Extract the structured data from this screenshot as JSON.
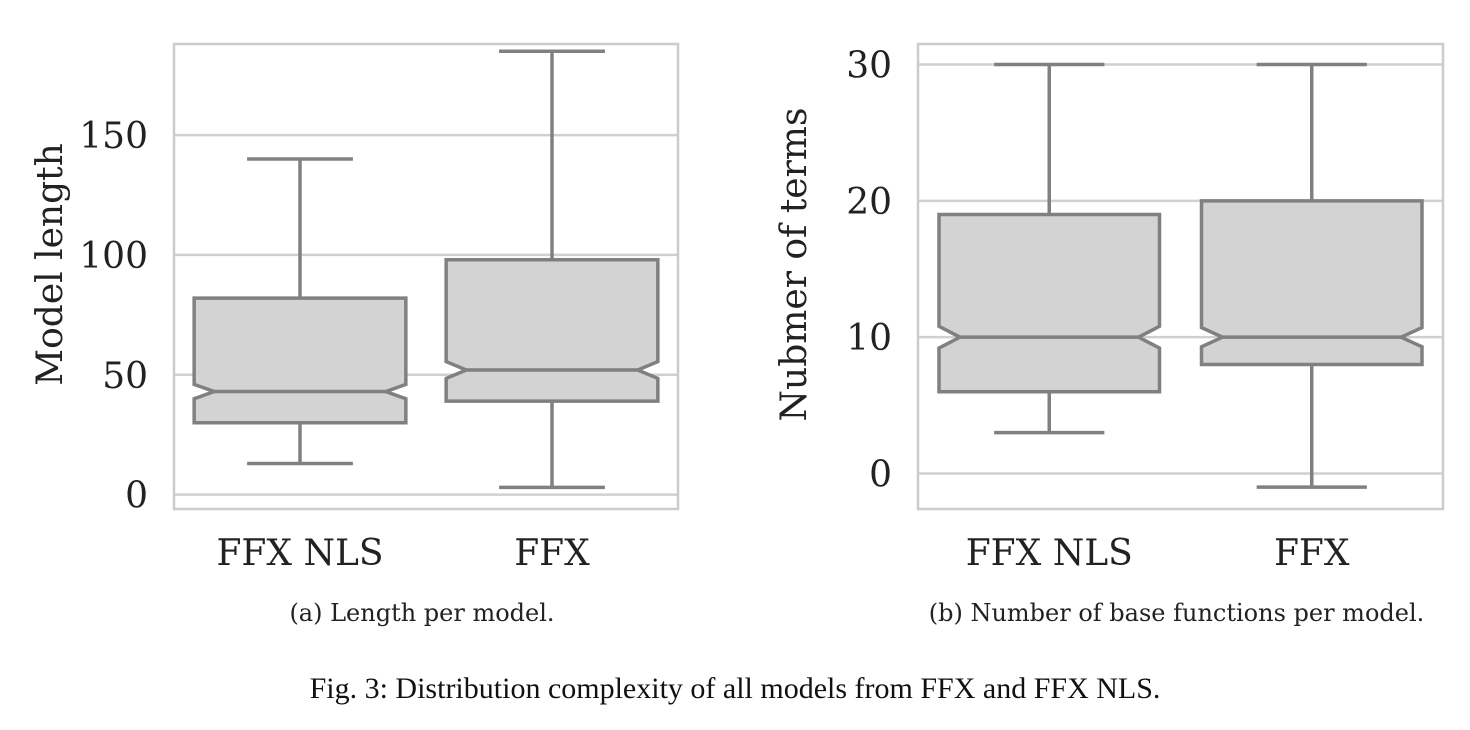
{
  "figure_caption": "Fig. 3: Distribution complexity of all models from FFX and FFX NLS.",
  "chart_data": [
    {
      "type": "box",
      "notched": true,
      "subcaption": "(a) Length per model.",
      "xlabel": "",
      "ylabel": "Model length",
      "categories": [
        "FFX NLS",
        "FFX"
      ],
      "ylim": [
        -6,
        188
      ],
      "yticks": [
        0,
        50,
        100,
        150
      ],
      "grid": true,
      "box_color": "#d3d3d3",
      "line_color": "#808080",
      "boxes": [
        {
          "whisker_low": 13,
          "q1": 30,
          "notch_low": 40,
          "median": 43,
          "notch_high": 46,
          "q3": 82,
          "whisker_high": 140
        },
        {
          "whisker_low": 3,
          "q1": 39,
          "notch_low": 48.5,
          "median": 52,
          "notch_high": 55.5,
          "q3": 98,
          "whisker_high": 185
        }
      ]
    },
    {
      "type": "box",
      "notched": true,
      "subcaption": "(b) Number of base functions per model.",
      "xlabel": "",
      "ylabel": "Nubmer of terms",
      "categories": [
        "FFX NLS",
        "FFX"
      ],
      "ylim": [
        -2.6,
        31.5
      ],
      "yticks": [
        0,
        10,
        20,
        30
      ],
      "grid": true,
      "box_color": "#d3d3d3",
      "line_color": "#808080",
      "boxes": [
        {
          "whisker_low": 3,
          "q1": 6,
          "notch_low": 9.2,
          "median": 10,
          "notch_high": 10.8,
          "q3": 19,
          "whisker_high": 30
        },
        {
          "whisker_low": -1,
          "q1": 8,
          "notch_low": 9.3,
          "median": 10,
          "notch_high": 10.7,
          "q3": 20,
          "whisker_high": 30
        }
      ]
    }
  ]
}
